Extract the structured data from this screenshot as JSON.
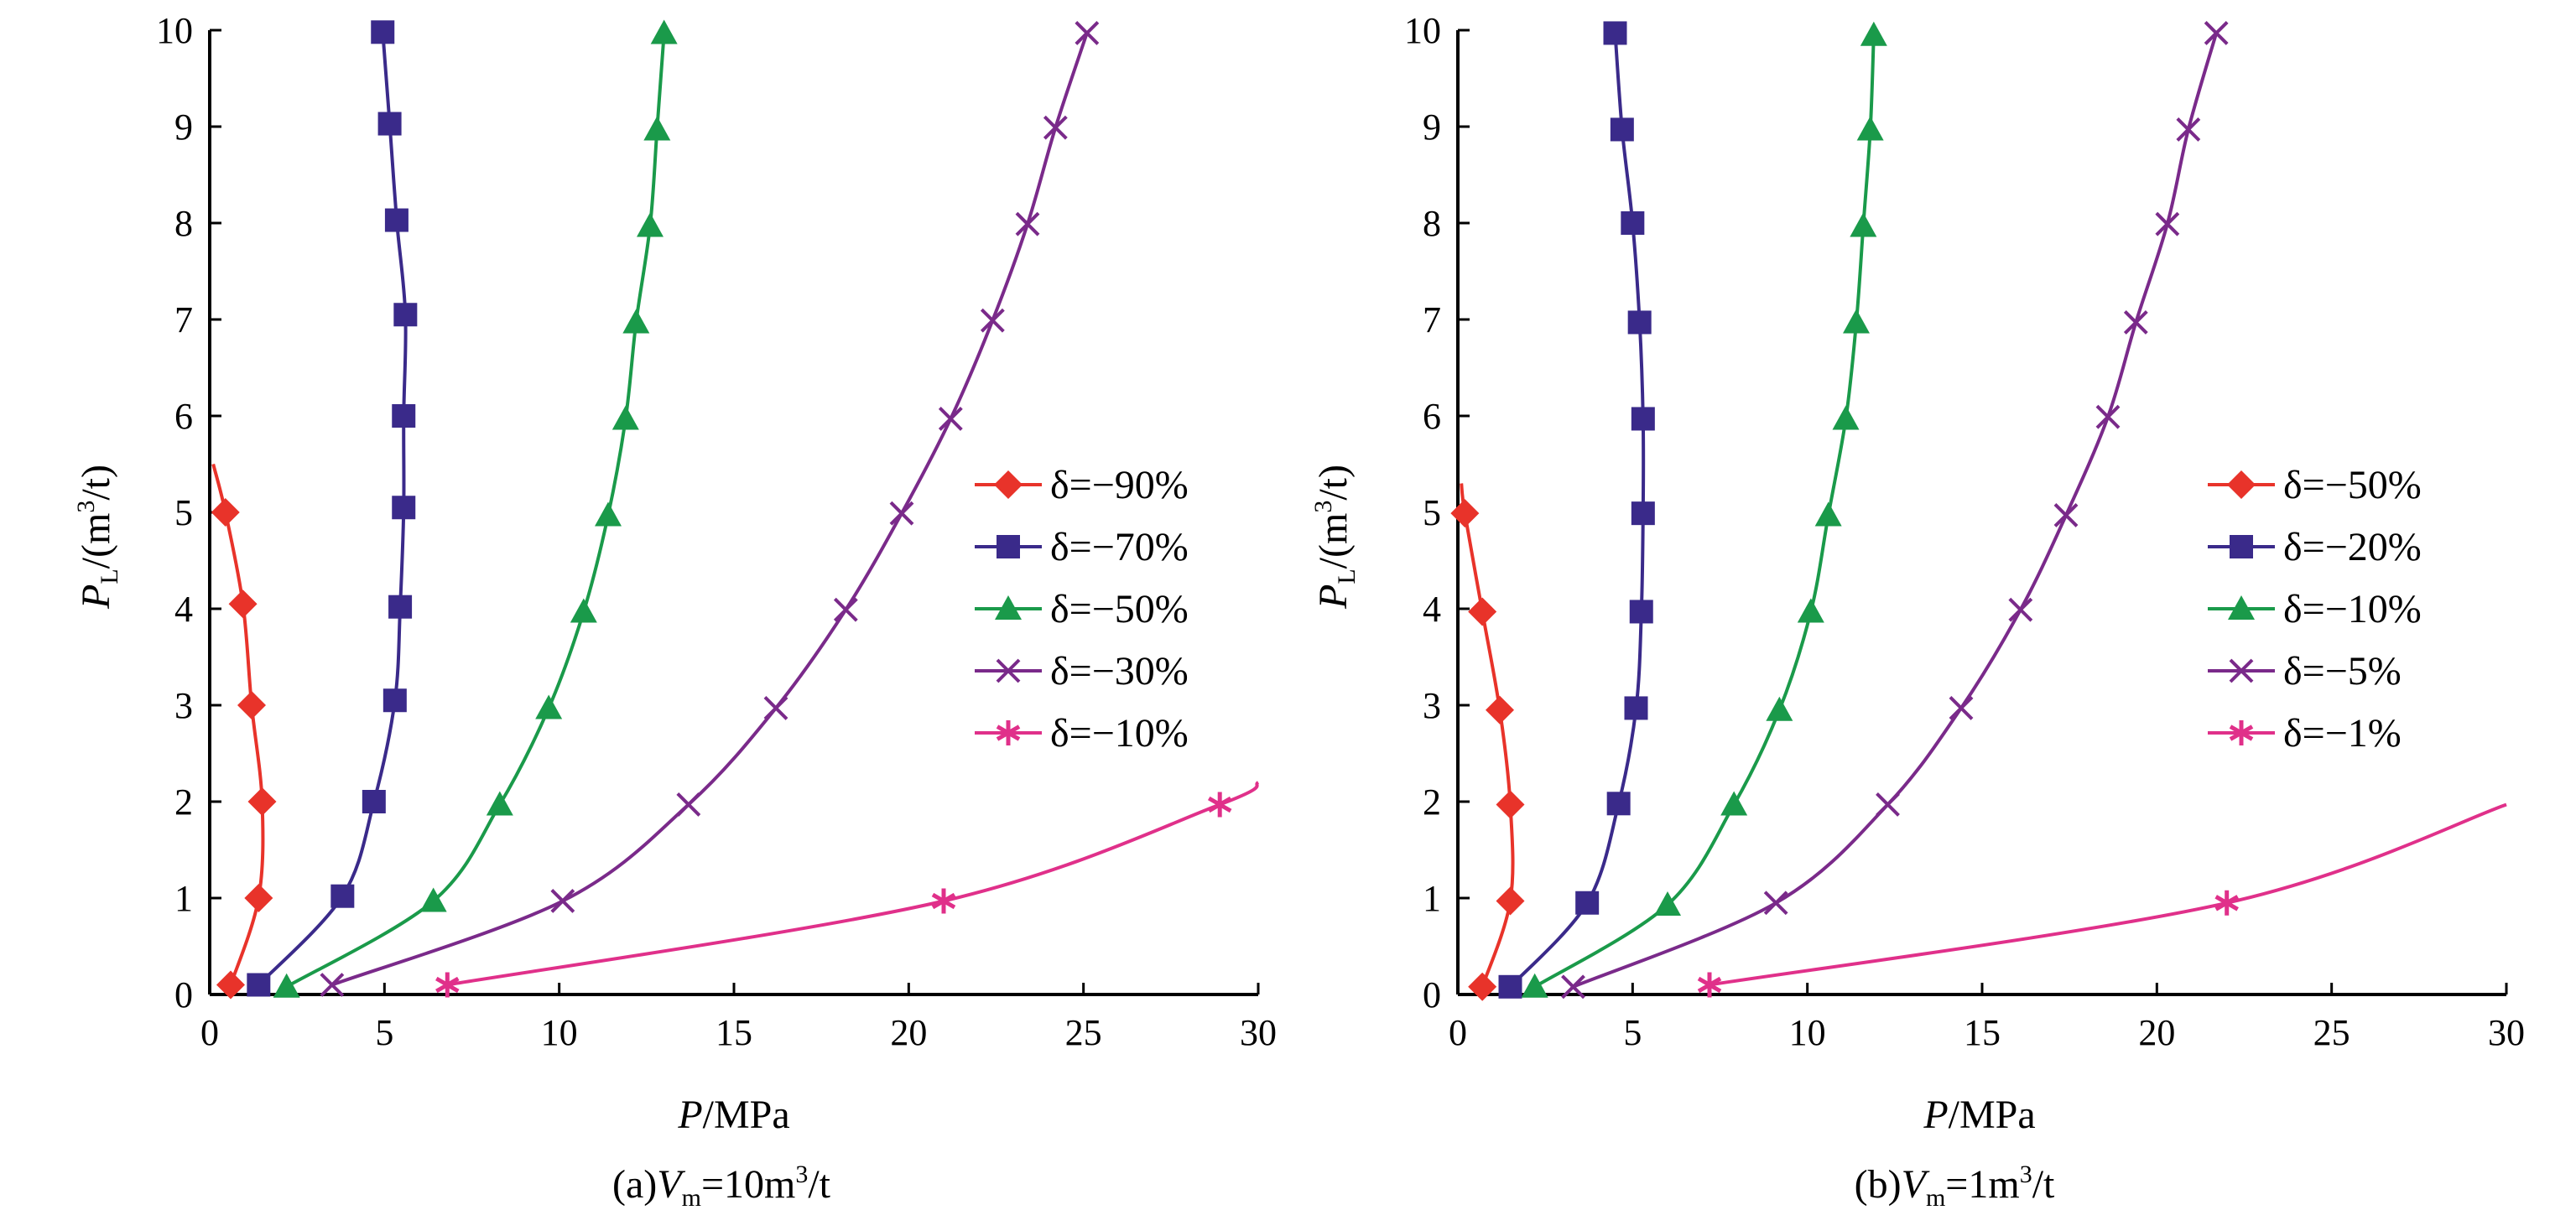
{
  "figure": {
    "panels": [
      {
        "caption_prefix": "(a)",
        "caption_var": "V",
        "caption_sub": "m",
        "caption_rest": "=10m",
        "caption_sup": "3",
        "caption_tail": "/t",
        "xlabel_var": "P",
        "xlabel_rest": "/MPa",
        "ylabel_var": "P",
        "ylabel_sub": "L",
        "ylabel_rest": "/(m",
        "ylabel_sup": "3",
        "ylabel_tail": "/t)"
      },
      {
        "caption_prefix": "(b)",
        "caption_var": "V",
        "caption_sub": "m",
        "caption_rest": "=1m",
        "caption_sup": "3",
        "caption_tail": "/t",
        "xlabel_var": "P",
        "xlabel_rest": "/MPa",
        "ylabel_var": "P",
        "ylabel_sub": "L",
        "ylabel_rest": "/(m",
        "ylabel_sup": "3",
        "ylabel_tail": "/t)"
      }
    ]
  },
  "chart_data": [
    {
      "type": "line",
      "xlim": [
        0,
        30
      ],
      "ylim": [
        0,
        10
      ],
      "xticks": [
        0,
        5,
        10,
        15,
        20,
        25,
        30
      ],
      "yticks": [
        0,
        1,
        2,
        3,
        4,
        5,
        6,
        7,
        8,
        9,
        10
      ],
      "legend_position": "right",
      "series": [
        {
          "name": "δ=−90%",
          "color": "#e8332a",
          "marker": "diamond",
          "points": [
            [
              0.6,
              0.1
            ],
            [
              1.4,
              1
            ],
            [
              1.5,
              2
            ],
            [
              1.2,
              3
            ],
            [
              0.95,
              4.05
            ],
            [
              0.45,
              5
            ]
          ],
          "curve": [
            [
              0.6,
              0.1
            ],
            [
              1.4,
              1
            ],
            [
              1.5,
              2
            ],
            [
              1.2,
              3
            ],
            [
              0.95,
              4.05
            ],
            [
              0.45,
              5
            ],
            [
              0.1,
              5.5
            ]
          ]
        },
        {
          "name": "δ=−70%",
          "color": "#3a2a8a",
          "marker": "square",
          "points": [
            [
              1.4,
              0.1
            ],
            [
              3.8,
              1.02
            ],
            [
              4.7,
              2
            ],
            [
              5.3,
              3.05
            ],
            [
              5.45,
              4.02
            ],
            [
              5.55,
              5.05
            ],
            [
              5.55,
              6
            ],
            [
              5.6,
              7.05
            ],
            [
              5.35,
              8.03
            ],
            [
              5.15,
              9.03
            ],
            [
              4.95,
              9.98
            ]
          ],
          "curve": [
            [
              1.4,
              0.1
            ],
            [
              3.8,
              1.02
            ],
            [
              4.7,
              2
            ],
            [
              5.3,
              3.05
            ],
            [
              5.45,
              4.02
            ],
            [
              5.55,
              5.05
            ],
            [
              5.55,
              6
            ],
            [
              5.6,
              7.05
            ],
            [
              5.35,
              8.03
            ],
            [
              5.15,
              9.03
            ],
            [
              4.95,
              9.98
            ]
          ]
        },
        {
          "name": "δ=−50%",
          "color": "#1a9a4a",
          "marker": "triangle",
          "points": [
            [
              2.2,
              0.08
            ],
            [
              6.4,
              0.97
            ],
            [
              8.3,
              1.97
            ],
            [
              9.7,
              2.97
            ],
            [
              10.7,
              3.97
            ],
            [
              11.4,
              4.97
            ],
            [
              11.9,
              5.97
            ],
            [
              12.2,
              6.97
            ],
            [
              12.6,
              7.97
            ],
            [
              12.8,
              8.97
            ],
            [
              13,
              9.97
            ]
          ],
          "curve": [
            [
              2.2,
              0.08
            ],
            [
              6.4,
              0.97
            ],
            [
              8.3,
              1.97
            ],
            [
              9.7,
              2.97
            ],
            [
              10.7,
              3.97
            ],
            [
              11.4,
              4.97
            ],
            [
              11.9,
              5.97
            ],
            [
              12.2,
              6.97
            ],
            [
              12.6,
              7.97
            ],
            [
              12.8,
              8.97
            ],
            [
              13,
              9.97
            ]
          ]
        },
        {
          "name": "δ=−30%",
          "color": "#7a2a8a",
          "marker": "x",
          "points": [
            [
              3.5,
              0.1
            ],
            [
              10.1,
              0.97
            ],
            [
              13.7,
              1.97
            ],
            [
              16.2,
              2.97
            ],
            [
              18.2,
              3.99
            ],
            [
              19.8,
              4.99
            ],
            [
              21.2,
              5.97
            ],
            [
              22.4,
              6.99
            ],
            [
              23.4,
              7.99
            ],
            [
              24.2,
              8.99
            ],
            [
              25.1,
              9.97
            ]
          ],
          "curve": [
            [
              3.5,
              0.1
            ],
            [
              10.1,
              0.97
            ],
            [
              13.7,
              1.97
            ],
            [
              16.2,
              2.97
            ],
            [
              18.2,
              3.99
            ],
            [
              19.8,
              4.99
            ],
            [
              21.2,
              5.97
            ],
            [
              22.4,
              6.99
            ],
            [
              23.4,
              7.99
            ],
            [
              24.2,
              8.99
            ],
            [
              25.1,
              9.97
            ]
          ]
        },
        {
          "name": "δ=−10%",
          "color": "#e0308a",
          "marker": "asterisk",
          "points": [
            [
              6.8,
              0.1
            ],
            [
              21,
              0.97
            ],
            [
              28.9,
              1.97
            ]
          ],
          "curve": [
            [
              6.8,
              0.1
            ],
            [
              21,
              0.97
            ],
            [
              28.9,
              1.97
            ],
            [
              30,
              2.2
            ]
          ]
        }
      ]
    },
    {
      "type": "line",
      "xlim": [
        0,
        30
      ],
      "ylim": [
        0,
        10
      ],
      "xticks": [
        0,
        5,
        10,
        15,
        20,
        25,
        30
      ],
      "yticks": [
        0,
        1,
        2,
        3,
        4,
        5,
        6,
        7,
        8,
        9,
        10
      ],
      "legend_position": "right",
      "series": [
        {
          "name": "δ=−50%",
          "color": "#e8332a",
          "marker": "diamond",
          "points": [
            [
              0.7,
              0.08
            ],
            [
              1.5,
              0.97
            ],
            [
              1.5,
              1.97
            ],
            [
              1.2,
              2.95
            ],
            [
              0.7,
              3.97
            ],
            [
              0.2,
              4.99
            ]
          ],
          "curve": [
            [
              0.7,
              0.08
            ],
            [
              1.5,
              0.97
            ],
            [
              1.5,
              1.97
            ],
            [
              1.2,
              2.95
            ],
            [
              0.7,
              3.97
            ],
            [
              0.2,
              4.99
            ],
            [
              0.1,
              5.3
            ]
          ]
        },
        {
          "name": "δ=−20%",
          "color": "#3a2a8a",
          "marker": "square",
          "points": [
            [
              1.5,
              0.08
            ],
            [
              3.7,
              0.95
            ],
            [
              4.6,
              1.98
            ],
            [
              5.1,
              2.97
            ],
            [
              5.25,
              3.97
            ],
            [
              5.3,
              4.99
            ],
            [
              5.3,
              5.97
            ],
            [
              5.2,
              6.97
            ],
            [
              5.0,
              8.0
            ],
            [
              4.7,
              8.97
            ],
            [
              4.5,
              9.97
            ]
          ],
          "curve": [
            [
              1.5,
              0.08
            ],
            [
              3.7,
              0.95
            ],
            [
              4.6,
              1.98
            ],
            [
              5.1,
              2.97
            ],
            [
              5.25,
              3.97
            ],
            [
              5.3,
              4.99
            ],
            [
              5.3,
              5.97
            ],
            [
              5.2,
              6.97
            ],
            [
              5.0,
              8.0
            ],
            [
              4.7,
              8.97
            ],
            [
              4.5,
              9.97
            ]
          ]
        },
        {
          "name": "δ=−10%",
          "color": "#1a9a4a",
          "marker": "triangle",
          "points": [
            [
              2.2,
              0.08
            ],
            [
              6,
              0.93
            ],
            [
              7.9,
              1.97
            ],
            [
              9.2,
              2.95
            ],
            [
              10.1,
              3.97
            ],
            [
              10.6,
              4.97
            ],
            [
              11.1,
              5.97
            ],
            [
              11.4,
              6.97
            ],
            [
              11.6,
              7.97
            ],
            [
              11.8,
              8.97
            ],
            [
              11.9,
              9.95
            ]
          ],
          "curve": [
            [
              2.2,
              0.08
            ],
            [
              6,
              0.93
            ],
            [
              7.9,
              1.97
            ],
            [
              9.2,
              2.95
            ],
            [
              10.1,
              3.97
            ],
            [
              10.6,
              4.97
            ],
            [
              11.1,
              5.97
            ],
            [
              11.4,
              6.97
            ],
            [
              11.6,
              7.97
            ],
            [
              11.8,
              8.97
            ],
            [
              11.9,
              9.95
            ]
          ]
        },
        {
          "name": "δ=−5%",
          "color": "#7a2a8a",
          "marker": "x",
          "points": [
            [
              3.3,
              0.08
            ],
            [
              9.1,
              0.95
            ],
            [
              12.3,
              1.97
            ],
            [
              14.4,
              2.97
            ],
            [
              16.1,
              3.99
            ],
            [
              17.4,
              4.97
            ],
            [
              18.6,
              5.99
            ],
            [
              19.4,
              6.97
            ],
            [
              20.3,
              7.99
            ],
            [
              20.9,
              8.97
            ],
            [
              21.7,
              9.97
            ]
          ],
          "curve": [
            [
              3.3,
              0.08
            ],
            [
              9.1,
              0.95
            ],
            [
              12.3,
              1.97
            ],
            [
              14.4,
              2.97
            ],
            [
              16.1,
              3.99
            ],
            [
              17.4,
              4.97
            ],
            [
              18.6,
              5.99
            ],
            [
              19.4,
              6.97
            ],
            [
              20.3,
              7.99
            ],
            [
              20.9,
              8.97
            ],
            [
              21.7,
              9.97
            ]
          ]
        },
        {
          "name": "δ=−1%",
          "color": "#e0308a",
          "marker": "asterisk",
          "points": [
            [
              7.2,
              0.1
            ],
            [
              22,
              0.95
            ]
          ],
          "curve": [
            [
              7.2,
              0.1
            ],
            [
              22,
              0.95
            ],
            [
              30,
              1.97
            ]
          ]
        }
      ]
    }
  ]
}
